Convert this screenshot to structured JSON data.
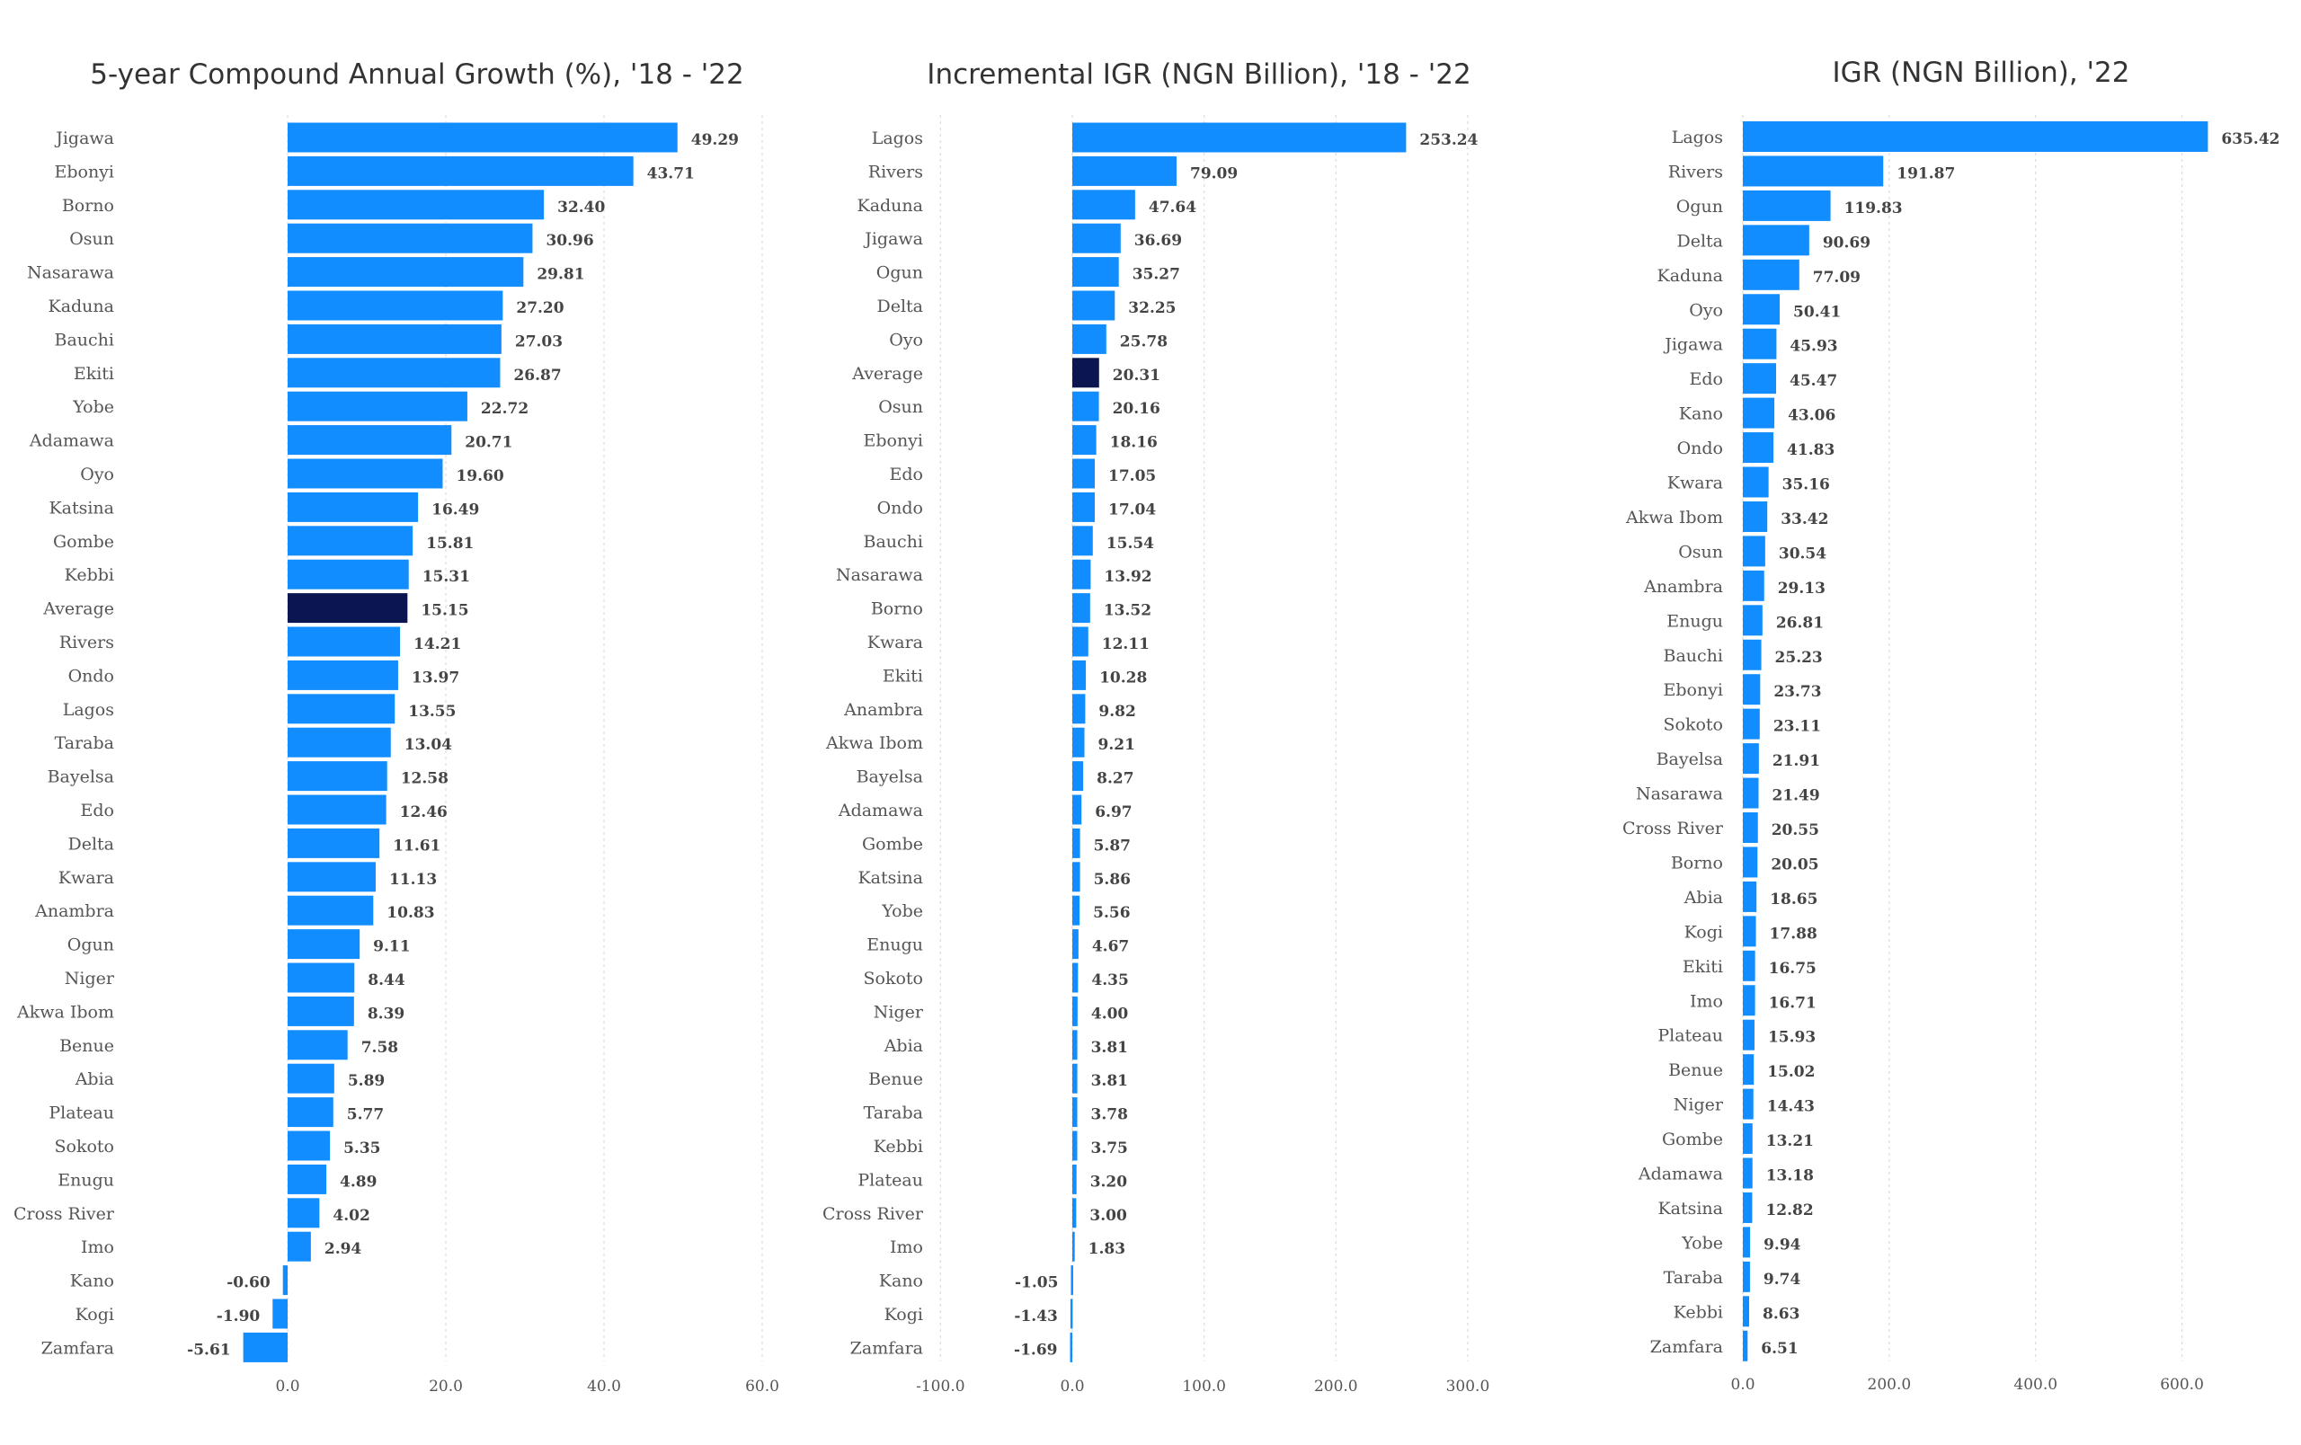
{
  "colors": {
    "bar": "#118dff",
    "highlight": "#0b1650",
    "text": "#444444",
    "grid": "#dcdcdc"
  },
  "chart_data": [
    {
      "type": "bar",
      "orientation": "horizontal",
      "title": "5-year Compound Annual Growth (%), '18 - '22",
      "highlight": "Average",
      "categories": [
        "Jigawa",
        "Ebonyi",
        "Borno",
        "Osun",
        "Nasarawa",
        "Kaduna",
        "Bauchi",
        "Ekiti",
        "Yobe",
        "Adamawa",
        "Oyo",
        "Katsina",
        "Gombe",
        "Kebbi",
        "Average",
        "Rivers",
        "Ondo",
        "Lagos",
        "Taraba",
        "Bayelsa",
        "Edo",
        "Delta",
        "Kwara",
        "Anambra",
        "Ogun",
        "Niger",
        "Akwa Ibom",
        "Benue",
        "Abia",
        "Plateau",
        "Sokoto",
        "Enugu",
        "Cross River",
        "Imo",
        "Kano",
        "Kogi",
        "Zamfara"
      ],
      "values": [
        49.29,
        43.71,
        32.4,
        30.96,
        29.81,
        27.2,
        27.03,
        26.87,
        22.72,
        20.71,
        19.6,
        16.49,
        15.81,
        15.31,
        15.15,
        14.21,
        13.97,
        13.55,
        13.04,
        12.58,
        12.46,
        11.61,
        11.13,
        10.83,
        9.11,
        8.44,
        8.39,
        7.58,
        5.89,
        5.77,
        5.35,
        4.89,
        4.02,
        2.94,
        -0.6,
        -1.9,
        -5.61
      ],
      "labels": [
        "49.29",
        "43.71",
        "32.40",
        "30.96",
        "29.81",
        "27.20",
        "27.03",
        "26.87",
        "22.72",
        "20.71",
        "19.60",
        "16.49",
        "15.81",
        "15.31",
        "15.15",
        "14.21",
        "13.97",
        "13.55",
        "13.04",
        "12.58",
        "12.46",
        "11.61",
        "11.13",
        "10.83",
        "9.11",
        "8.44",
        "8.39",
        "7.58",
        "5.89",
        "5.77",
        "5.35",
        "4.89",
        "4.02",
        "2.94",
        "-0.60",
        "-1.90",
        "-5.61"
      ],
      "xlim": [
        -6,
        61
      ],
      "xticks": [
        0,
        20,
        40,
        60
      ],
      "xtick_labels": [
        "0.0",
        "20.0",
        "40.0",
        "60.0"
      ],
      "grid": true
    },
    {
      "type": "bar",
      "orientation": "horizontal",
      "title": "Incremental IGR (NGN Billion), '18 - '22",
      "highlight": "Average",
      "categories": [
        "Lagos",
        "Rivers",
        "Kaduna",
        "Jigawa",
        "Ogun",
        "Delta",
        "Oyo",
        "Average",
        "Osun",
        "Ebonyi",
        "Edo",
        "Ondo",
        "Bauchi",
        "Nasarawa",
        "Borno",
        "Kwara",
        "Ekiti",
        "Anambra",
        "Akwa Ibom",
        "Bayelsa",
        "Adamawa",
        "Gombe",
        "Katsina",
        "Yobe",
        "Enugu",
        "Sokoto",
        "Niger",
        "Abia",
        "Benue",
        "Taraba",
        "Kebbi",
        "Plateau",
        "Cross River",
        "Imo",
        "Kano",
        "Kogi",
        "Zamfara"
      ],
      "values": [
        253.24,
        79.09,
        47.64,
        36.69,
        35.27,
        32.25,
        25.78,
        20.31,
        20.16,
        18.16,
        17.05,
        17.04,
        15.54,
        13.92,
        13.52,
        12.11,
        10.28,
        9.82,
        9.21,
        8.27,
        6.97,
        5.87,
        5.86,
        5.56,
        4.67,
        4.35,
        4.0,
        3.81,
        3.81,
        3.78,
        3.75,
        3.2,
        3.0,
        1.83,
        -1.05,
        -1.43,
        -1.69
      ],
      "labels": [
        "253.24",
        "79.09",
        "47.64",
        "36.69",
        "35.27",
        "32.25",
        "25.78",
        "20.31",
        "20.16",
        "18.16",
        "17.05",
        "17.04",
        "15.54",
        "13.92",
        "13.52",
        "12.11",
        "10.28",
        "9.82",
        "9.21",
        "8.27",
        "6.97",
        "5.87",
        "5.86",
        "5.56",
        "4.67",
        "4.35",
        "4.00",
        "3.81",
        "3.81",
        "3.78",
        "3.75",
        "3.20",
        "3.00",
        "1.83",
        "-1.05",
        "-1.43",
        "-1.69"
      ],
      "xlim": [
        -102,
        302
      ],
      "xticks": [
        -100,
        0,
        100,
        200,
        300
      ],
      "xtick_labels": [
        "-100.0",
        "0.0",
        "100.0",
        "200.0",
        "300.0"
      ],
      "grid": true
    },
    {
      "type": "bar",
      "orientation": "horizontal",
      "title": "IGR (NGN Billion), '22",
      "categories": [
        "Lagos",
        "Rivers",
        "Ogun",
        "Delta",
        "Kaduna",
        "Oyo",
        "Jigawa",
        "Edo",
        "Kano",
        "Ondo",
        "Kwara",
        "Akwa Ibom",
        "Osun",
        "Anambra",
        "Enugu",
        "Bauchi",
        "Ebonyi",
        "Sokoto",
        "Bayelsa",
        "Nasarawa",
        "Cross River",
        "Borno",
        "Abia",
        "Kogi",
        "Ekiti",
        "Imo",
        "Plateau",
        "Benue",
        "Niger",
        "Gombe",
        "Adamawa",
        "Katsina",
        "Yobe",
        "Taraba",
        "Kebbi",
        "Zamfara"
      ],
      "values": [
        635.42,
        191.87,
        119.83,
        90.69,
        77.09,
        50.41,
        45.93,
        45.47,
        43.06,
        41.83,
        35.16,
        33.42,
        30.54,
        29.13,
        26.81,
        25.23,
        23.73,
        23.11,
        21.91,
        21.49,
        20.55,
        20.05,
        18.65,
        17.88,
        16.75,
        16.71,
        15.93,
        15.02,
        14.43,
        13.21,
        13.18,
        12.82,
        9.94,
        9.74,
        8.63,
        6.51
      ],
      "labels": [
        "635.42",
        "191.87",
        "119.83",
        "90.69",
        "77.09",
        "50.41",
        "45.93",
        "45.47",
        "43.06",
        "41.83",
        "35.16",
        "33.42",
        "30.54",
        "29.13",
        "26.81",
        "25.23",
        "23.73",
        "23.11",
        "21.91",
        "21.49",
        "20.55",
        "20.05",
        "18.65",
        "17.88",
        "16.75",
        "16.71",
        "15.93",
        "15.02",
        "14.43",
        "13.21",
        "13.18",
        "12.82",
        "9.94",
        "9.74",
        "8.63",
        "6.51"
      ],
      "xlim": [
        0,
        640
      ],
      "xticks": [
        0,
        200,
        400,
        600
      ],
      "xtick_labels": [
        "0.0",
        "200.0",
        "400.0",
        "600.0"
      ],
      "grid": true
    }
  ]
}
